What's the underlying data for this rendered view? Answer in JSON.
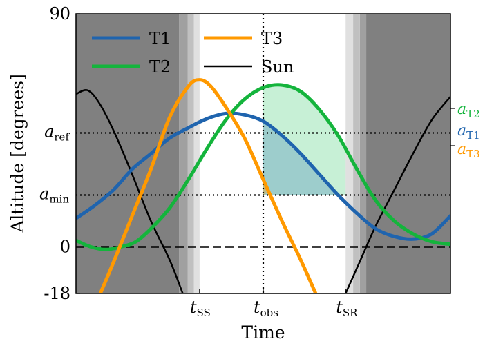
{
  "chart_data": {
    "type": "line",
    "xlabel": "Time",
    "ylabel": "Altitude [degrees]",
    "ylim": [
      -18,
      90
    ],
    "y_ticks": [
      {
        "value": 90,
        "label": "90"
      },
      {
        "value": 0,
        "label": "0"
      },
      {
        "value": -18,
        "label": "-18"
      }
    ],
    "y_marker_ticks": [
      {
        "value": 44,
        "base": "a",
        "sub": "ref"
      },
      {
        "value": 20,
        "base": "a",
        "sub": "min"
      }
    ],
    "x_range": [
      0,
      1
    ],
    "x_ticks": [
      {
        "key": "t_SS",
        "value": 0.33,
        "base": "t",
        "sub": "SS"
      },
      {
        "key": "t_obs",
        "value": 0.5,
        "base": "t",
        "sub": "obs"
      },
      {
        "key": "t_SR",
        "value": 0.72,
        "base": "t",
        "sub": "SR"
      }
    ],
    "reference_lines": [
      {
        "orientation": "horizontal",
        "y": 44,
        "style": "dotted"
      },
      {
        "orientation": "horizontal",
        "y": 20,
        "style": "dotted"
      },
      {
        "orientation": "horizontal",
        "y": 0,
        "style": "dashed"
      },
      {
        "orientation": "vertical",
        "x": 0.5,
        "style": "dotted"
      }
    ],
    "twilight_bands": {
      "colors": [
        "#808080",
        "#a0a0a0",
        "#c0c0c0",
        "#e0e0e0"
      ],
      "dusk_edges": [
        0.275,
        0.298,
        0.315,
        0.33
      ],
      "dawn_edges": [
        0.72,
        0.74,
        0.758,
        0.775
      ]
    },
    "shaded_region": {
      "x_start": 0.5,
      "x_end": 0.72,
      "y_low": 20,
      "series": "T2",
      "color": "#00bb44"
    },
    "series": [
      {
        "name": "T1",
        "color": "#1f64ae",
        "width": 5,
        "points": [
          [
            0,
            11
          ],
          [
            0.05,
            16
          ],
          [
            0.1,
            22
          ],
          [
            0.15,
            30
          ],
          [
            0.2,
            36
          ],
          [
            0.25,
            42
          ],
          [
            0.3,
            46
          ],
          [
            0.35,
            49.5
          ],
          [
            0.4,
            51.5
          ],
          [
            0.45,
            51
          ],
          [
            0.5,
            48.5
          ],
          [
            0.55,
            43
          ],
          [
            0.6,
            36
          ],
          [
            0.65,
            28
          ],
          [
            0.7,
            20
          ],
          [
            0.75,
            13
          ],
          [
            0.8,
            7
          ],
          [
            0.85,
            4
          ],
          [
            0.9,
            3
          ],
          [
            0.95,
            5
          ],
          [
            1.0,
            12
          ]
        ]
      },
      {
        "name": "T2",
        "color": "#14b43c",
        "width": 5,
        "points": [
          [
            0,
            2.5
          ],
          [
            0.04,
            0
          ],
          [
            0.08,
            -1
          ],
          [
            0.12,
            0
          ],
          [
            0.16,
            2
          ],
          [
            0.2,
            7
          ],
          [
            0.25,
            15
          ],
          [
            0.3,
            26
          ],
          [
            0.35,
            38
          ],
          [
            0.4,
            49
          ],
          [
            0.45,
            57
          ],
          [
            0.5,
            61.5
          ],
          [
            0.55,
            62.5
          ],
          [
            0.6,
            60
          ],
          [
            0.65,
            53
          ],
          [
            0.7,
            43
          ],
          [
            0.75,
            30
          ],
          [
            0.8,
            18
          ],
          [
            0.85,
            10
          ],
          [
            0.9,
            5
          ],
          [
            0.95,
            2
          ],
          [
            1.0,
            1
          ]
        ]
      },
      {
        "name": "T3",
        "color": "#ff9900",
        "width": 5,
        "points": [
          [
            0.065,
            -18
          ],
          [
            0.1,
            -6
          ],
          [
            0.15,
            12
          ],
          [
            0.2,
            30
          ],
          [
            0.25,
            50
          ],
          [
            0.3,
            62
          ],
          [
            0.33,
            64.5
          ],
          [
            0.36,
            62
          ],
          [
            0.4,
            54
          ],
          [
            0.45,
            42
          ],
          [
            0.5,
            26
          ],
          [
            0.55,
            10
          ],
          [
            0.6,
            -5
          ],
          [
            0.64,
            -18
          ]
        ]
      },
      {
        "name": "Sun",
        "color": "#000000",
        "width": 2.5,
        "points": [
          [
            0,
            59
          ],
          [
            0.03,
            60.5
          ],
          [
            0.06,
            56
          ],
          [
            0.1,
            45
          ],
          [
            0.15,
            28
          ],
          [
            0.2,
            10
          ],
          [
            0.25,
            -5
          ],
          [
            0.285,
            -18
          ]
        ],
        "points2": [
          [
            0.72,
            -18
          ],
          [
            0.76,
            -5
          ],
          [
            0.8,
            8
          ],
          [
            0.85,
            22
          ],
          [
            0.9,
            36
          ],
          [
            0.95,
            49
          ],
          [
            1.0,
            58
          ]
        ]
      }
    ],
    "legend": {
      "placement": "top-left",
      "columns": 2,
      "entries": [
        "T1",
        "T3",
        "T2",
        "Sun"
      ]
    },
    "side_labels": [
      {
        "base": "a",
        "sub": "T2",
        "color": "#14b43c"
      },
      {
        "base": "a",
        "sub": "T1",
        "color": "#1f64ae"
      },
      {
        "base": "a",
        "sub": "T3",
        "color": "#ff9900"
      }
    ]
  }
}
